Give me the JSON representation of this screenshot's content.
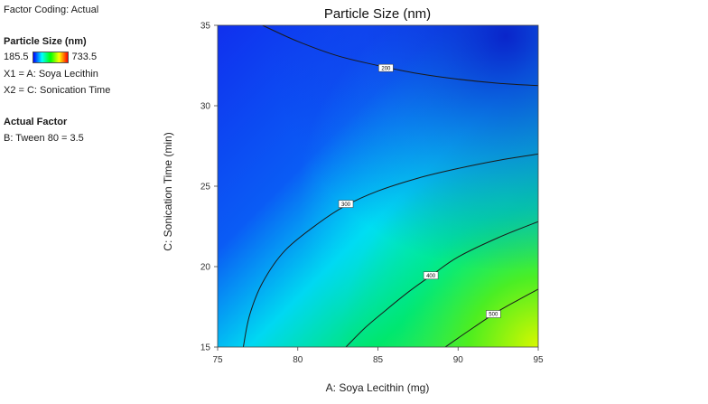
{
  "sidebar": {
    "factor_coding": "Factor Coding: Actual",
    "response_title": "Particle Size (nm)",
    "scale_min": "185.5",
    "scale_max": "733.5",
    "x1": "X1 = A: Soya Lecithin",
    "x2": "X2 = C: Sonication Time",
    "actual_factor_title": "Actual Factor",
    "actual_factor_value": "B: Tween 80 = 3.5"
  },
  "colors": {
    "scale": [
      "#0000ff",
      "#00ffff",
      "#00ff00",
      "#ffff00",
      "#ff0000"
    ]
  },
  "chart_data": {
    "type": "contour",
    "title": "Particle Size (nm)",
    "xlabel": "A: Soya Lecithin (mg)",
    "ylabel": "C: Sonication Time  (min)",
    "xlim": [
      75,
      95
    ],
    "ylim": [
      15,
      35
    ],
    "xticks": [
      75,
      80,
      85,
      90,
      95
    ],
    "yticks": [
      15,
      20,
      25,
      30,
      35
    ],
    "color_range": [
      185.5,
      733.5
    ],
    "contours": [
      {
        "level": "200",
        "points": [
          [
            77.8,
            35
          ],
          [
            80,
            34.0
          ],
          [
            82.5,
            33.1
          ],
          [
            85,
            32.5
          ],
          [
            87.5,
            32.0
          ],
          [
            90,
            31.65
          ],
          [
            92.5,
            31.4
          ],
          [
            95,
            31.25
          ]
        ],
        "label_at": [
          85.5,
          32.35
        ]
      },
      {
        "level": "300",
        "points": [
          [
            76.6,
            15
          ],
          [
            77.0,
            17
          ],
          [
            77.8,
            19
          ],
          [
            79.2,
            21
          ],
          [
            81.3,
            22.7
          ],
          [
            83,
            23.8
          ],
          [
            85,
            24.7
          ],
          [
            87.5,
            25.5
          ],
          [
            90,
            26.1
          ],
          [
            92.5,
            26.6
          ],
          [
            95,
            27.0
          ]
        ],
        "label_at": [
          83.0,
          23.9
        ]
      },
      {
        "level": "400",
        "points": [
          [
            83.0,
            15
          ],
          [
            84.2,
            16.2
          ],
          [
            85.5,
            17.3
          ],
          [
            87,
            18.5
          ],
          [
            88.4,
            19.5
          ],
          [
            90,
            20.6
          ],
          [
            92.5,
            21.8
          ],
          [
            95,
            22.8
          ]
        ],
        "label_at": [
          88.3,
          19.45
        ]
      },
      {
        "level": "500",
        "points": [
          [
            89.2,
            15
          ],
          [
            90.5,
            15.9
          ],
          [
            92.3,
            17.1
          ],
          [
            93.7,
            17.9
          ],
          [
            95,
            18.6
          ]
        ],
        "label_at": [
          92.2,
          17.05
        ]
      }
    ]
  }
}
